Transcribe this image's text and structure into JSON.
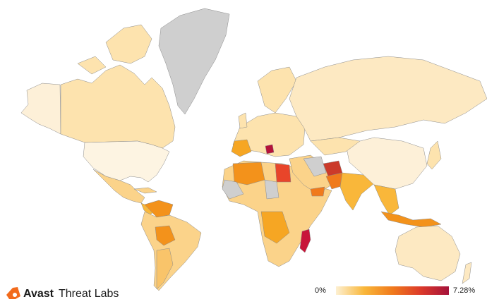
{
  "brand": {
    "name": "Avast",
    "product": "Threat Labs"
  },
  "legend": {
    "min_label": "0%",
    "max_label": "7.28%"
  }
}
